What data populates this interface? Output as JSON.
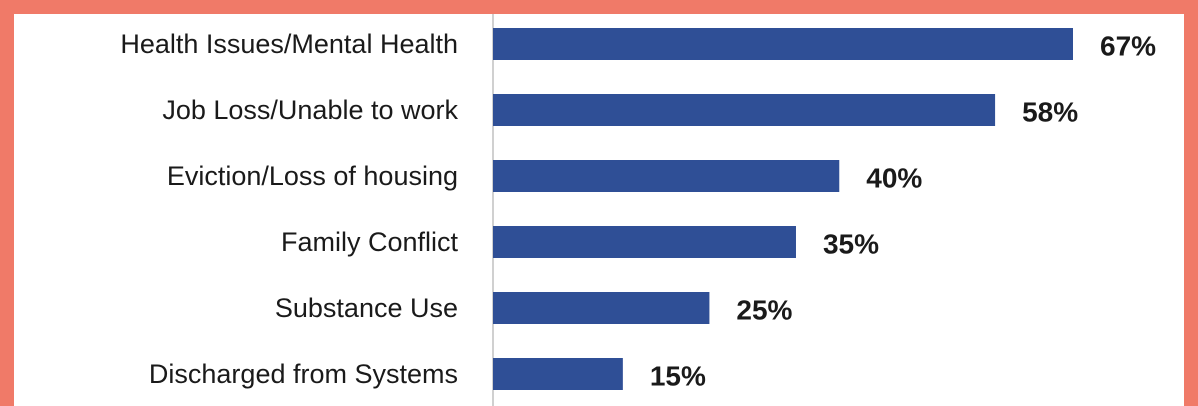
{
  "colors": {
    "frame": "#f07a68",
    "background": "#ffffff",
    "bar": "#2f4f96",
    "axis": "#d0d0d0",
    "text": "#1a1a1a"
  },
  "chart_data": {
    "type": "bar",
    "orientation": "horizontal",
    "title": "",
    "xlabel": "",
    "ylabel": "",
    "categories": [
      "Health Issues/Mental Health",
      "Job Loss/Unable to work",
      "Eviction/Loss of housing",
      "Family Conflict",
      "Substance Use",
      "Discharged from Systems"
    ],
    "values": [
      67,
      58,
      40,
      35,
      25,
      15
    ],
    "value_labels": [
      "67%",
      "58%",
      "40%",
      "35%",
      "25%",
      "15%"
    ],
    "value_unit": "%",
    "xlim": [
      0,
      67
    ],
    "grid": false,
    "legend": "none"
  }
}
